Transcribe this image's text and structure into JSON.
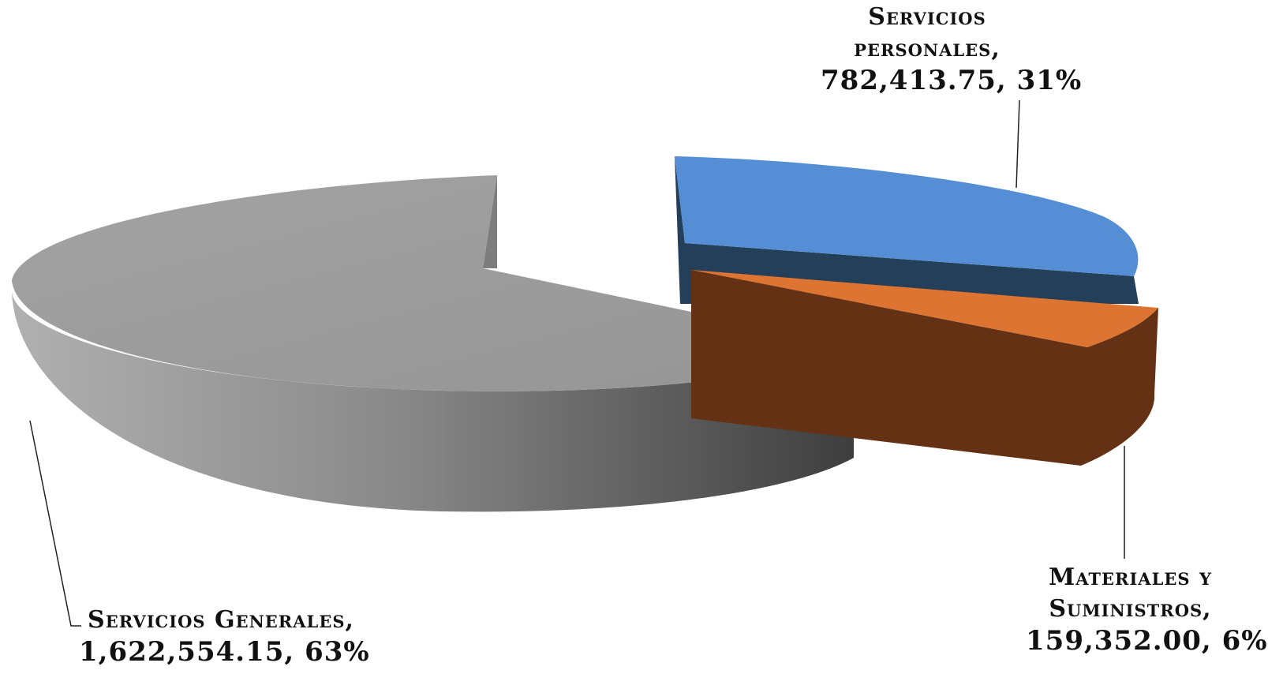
{
  "chart_data": {
    "type": "pie",
    "style": "3d-exploded",
    "slices": [
      {
        "name": "Servicios personales",
        "value": 782413.75,
        "value_label": "782,413.75",
        "percent_label": "31%",
        "color_top": "#558ED5",
        "color_side": "#243F5A"
      },
      {
        "name": "Materiales y Suministros",
        "value": 159352.0,
        "value_label": "159,352.00",
        "percent_label": "6%",
        "color_top": "#DD7431",
        "color_side": "#643114"
      },
      {
        "name": "Servicios Generales",
        "value": 1622554.15,
        "value_label": "1,622,554.15",
        "percent_label": "63%",
        "color_top": "#9C9C9C",
        "color_side": "#777777"
      }
    ],
    "labels": {
      "personales": {
        "line1": "Servicios",
        "line2": "personales,",
        "line3": "782,413.75,  31%"
      },
      "materiales": {
        "line1": "Materiales y",
        "line2": "Suministros,",
        "line3": "159,352.00,  6%"
      },
      "generales": {
        "line1": "Servicios Generales,",
        "line2": "1,622,554.15,  63%"
      }
    }
  }
}
